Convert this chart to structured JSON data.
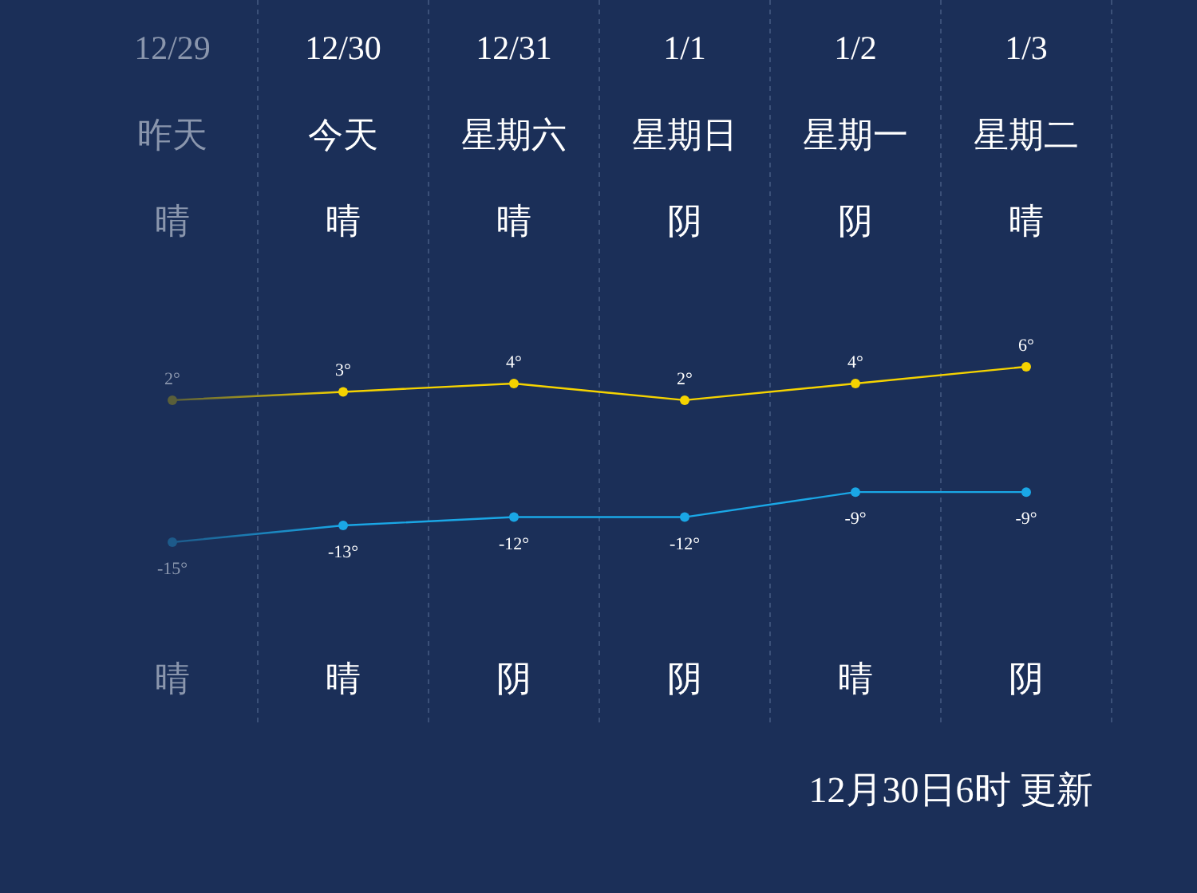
{
  "chart_data": {
    "type": "line",
    "categories": [
      "12/29",
      "12/30",
      "12/31",
      "1/1",
      "1/2",
      "1/3"
    ],
    "series": [
      {
        "colors": [
          "#5a5f3a",
          "#f5d300",
          "#f5d300",
          "#f5d300",
          "#f5d300",
          "#f5d300"
        ],
        "values": [
          2,
          3,
          4,
          2,
          4,
          6
        ],
        "value_labels": [
          "2°",
          "3°",
          "4°",
          "2°",
          "4°",
          "6°"
        ]
      },
      {
        "colors": [
          "#1d5a8a",
          "#1aa7e6",
          "#1aa7e6",
          "#1aa7e6",
          "#1aa7e6",
          "#1aa7e6"
        ],
        "values": [
          -15,
          -13,
          -12,
          -12,
          -9,
          -9
        ],
        "value_labels": [
          "-15°",
          "-13°",
          "-12°",
          "-12°",
          "-9°",
          "-9°"
        ]
      }
    ],
    "marker": "circle",
    "grid": "x",
    "annotations": [
      "昨天",
      "晴",
      "晴",
      "今天",
      "晴",
      "晴",
      "星期六",
      "晴",
      "阴",
      "星期日",
      "阴",
      "阴",
      "星期一",
      "阴",
      "晴",
      "星期二",
      "晴",
      "阴",
      "12月30日6时 更新"
    ]
  }
}
